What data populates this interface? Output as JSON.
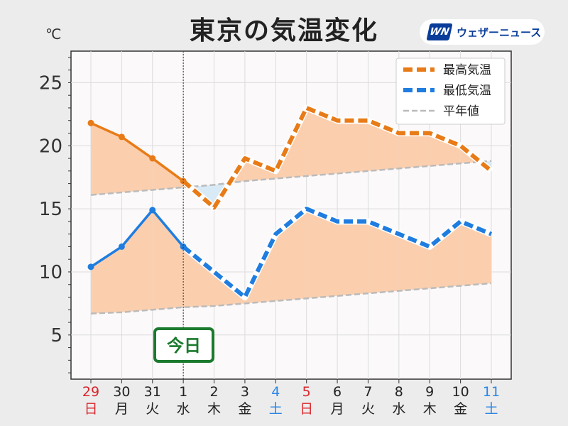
{
  "header": {
    "title": "東京の気温変化",
    "unit": "℃",
    "logo_text": "ウェザーニュース",
    "logo_mark": "WN"
  },
  "chart_data": {
    "type": "line",
    "title": "東京の気温変化",
    "ylabel": "℃",
    "ylim": [
      1.5,
      27.5
    ],
    "yticks": [
      5,
      10,
      15,
      20,
      25
    ],
    "grid": true,
    "legend_position": "top-right",
    "today_label": "今日",
    "today_index": 3,
    "categories": [
      {
        "date": "29",
        "day": "日"
      },
      {
        "date": "30",
        "day": "月"
      },
      {
        "date": "31",
        "day": "火"
      },
      {
        "date": "1",
        "day": "水"
      },
      {
        "date": "2",
        "day": "木"
      },
      {
        "date": "3",
        "day": "金"
      },
      {
        "date": "4",
        "day": "土"
      },
      {
        "date": "5",
        "day": "日"
      },
      {
        "date": "6",
        "day": "月"
      },
      {
        "date": "7",
        "day": "火"
      },
      {
        "date": "8",
        "day": "水"
      },
      {
        "date": "9",
        "day": "木"
      },
      {
        "date": "10",
        "day": "金"
      },
      {
        "date": "11",
        "day": "土"
      }
    ],
    "day_colors": {
      "日": "#d9262c",
      "土": "#2a86e6",
      "default": "#222222"
    },
    "series": [
      {
        "name": "最高気温",
        "color": "#e87b17",
        "values": [
          21.8,
          20.7,
          19.0,
          17.2,
          15.1,
          19.0,
          18.0,
          23.0,
          22.0,
          22.0,
          21.0,
          21.0,
          20.0,
          18.0
        ]
      },
      {
        "name": "最低気温",
        "color": "#1f7de0",
        "values": [
          10.4,
          12.0,
          14.9,
          12.0,
          10.0,
          8.0,
          13.0,
          15.0,
          14.0,
          14.0,
          13.0,
          12.0,
          14.0,
          13.0
        ]
      },
      {
        "name": "平年値",
        "color": "#bbbbbb",
        "values_high": [
          16.1,
          16.3,
          16.5,
          16.7,
          16.9,
          17.2,
          17.4,
          17.6,
          17.8,
          18.0,
          18.2,
          18.4,
          18.6,
          18.8
        ],
        "values_low": [
          6.7,
          6.8,
          7.0,
          7.2,
          7.3,
          7.5,
          7.7,
          7.9,
          8.1,
          8.3,
          8.5,
          8.7,
          8.9,
          9.1
        ]
      }
    ],
    "colors": {
      "above_normal_fill": "#fbcfae",
      "below_normal_fill": "#d8eaf6",
      "today_box": "#1b7a2e"
    }
  }
}
